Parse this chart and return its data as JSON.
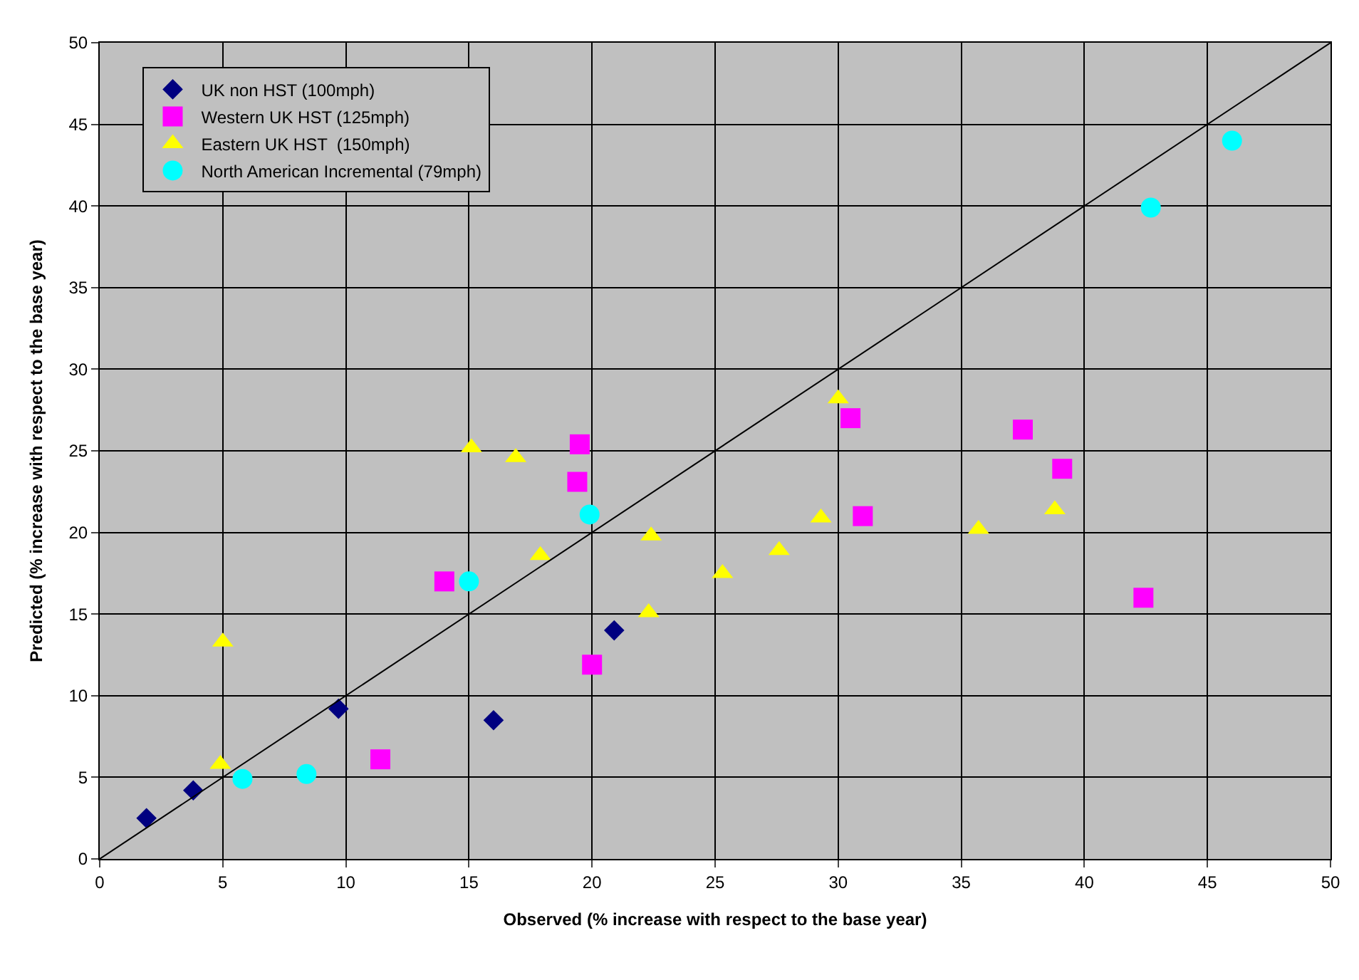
{
  "chart_data": {
    "type": "scatter",
    "xlabel": "Observed (% increase with respect to the base year)",
    "ylabel": "Predicted (% increase with respect to the base year)",
    "xlim": [
      0,
      50
    ],
    "ylim": [
      0,
      50
    ],
    "xticks": [
      0,
      5,
      10,
      15,
      20,
      25,
      30,
      35,
      40,
      45,
      50
    ],
    "yticks": [
      0,
      5,
      10,
      15,
      20,
      25,
      30,
      35,
      40,
      45,
      50
    ],
    "grid": true,
    "legend": "top left",
    "series": [
      {
        "name": "UK non HST (100mph)",
        "color": "#000080",
        "marker": "diamond",
        "x": [
          1.9,
          3.8,
          9.7,
          16.0,
          20.9
        ],
        "values": [
          2.5,
          4.2,
          9.2,
          8.5,
          14.0
        ]
      },
      {
        "name": "Western UK HST (125mph)",
        "color": "#ff00ff",
        "marker": "square",
        "x": [
          11.4,
          14.0,
          19.4,
          19.5,
          20.0,
          30.5,
          31.0,
          37.5,
          39.1,
          42.4
        ],
        "values": [
          6.1,
          17.0,
          23.1,
          25.4,
          11.9,
          27.0,
          21.0,
          26.3,
          23.9,
          16.0
        ]
      },
      {
        "name": "Eastern UK HST  (150mph)",
        "color": "#ffff00",
        "marker": "triangle",
        "x": [
          5.0,
          4.9,
          15.1,
          16.9,
          17.9,
          22.4,
          22.3,
          25.3,
          27.6,
          29.3,
          30.0,
          35.7,
          38.8
        ],
        "values": [
          13.3,
          5.8,
          25.2,
          24.6,
          18.6,
          19.8,
          15.1,
          17.5,
          18.9,
          20.9,
          28.2,
          20.2,
          21.4
        ]
      },
      {
        "name": "North American Incremental (79mph)",
        "color": "#00ffff",
        "marker": "circle",
        "x": [
          5.8,
          8.4,
          15.0,
          19.9,
          42.7,
          46.0
        ],
        "values": [
          4.9,
          5.2,
          17.0,
          21.1,
          39.9,
          44.0
        ]
      },
      {
        "type": "line",
        "color": "#000000",
        "marker": "none",
        "x": [
          0,
          50
        ],
        "values": [
          0,
          50
        ]
      }
    ]
  }
}
